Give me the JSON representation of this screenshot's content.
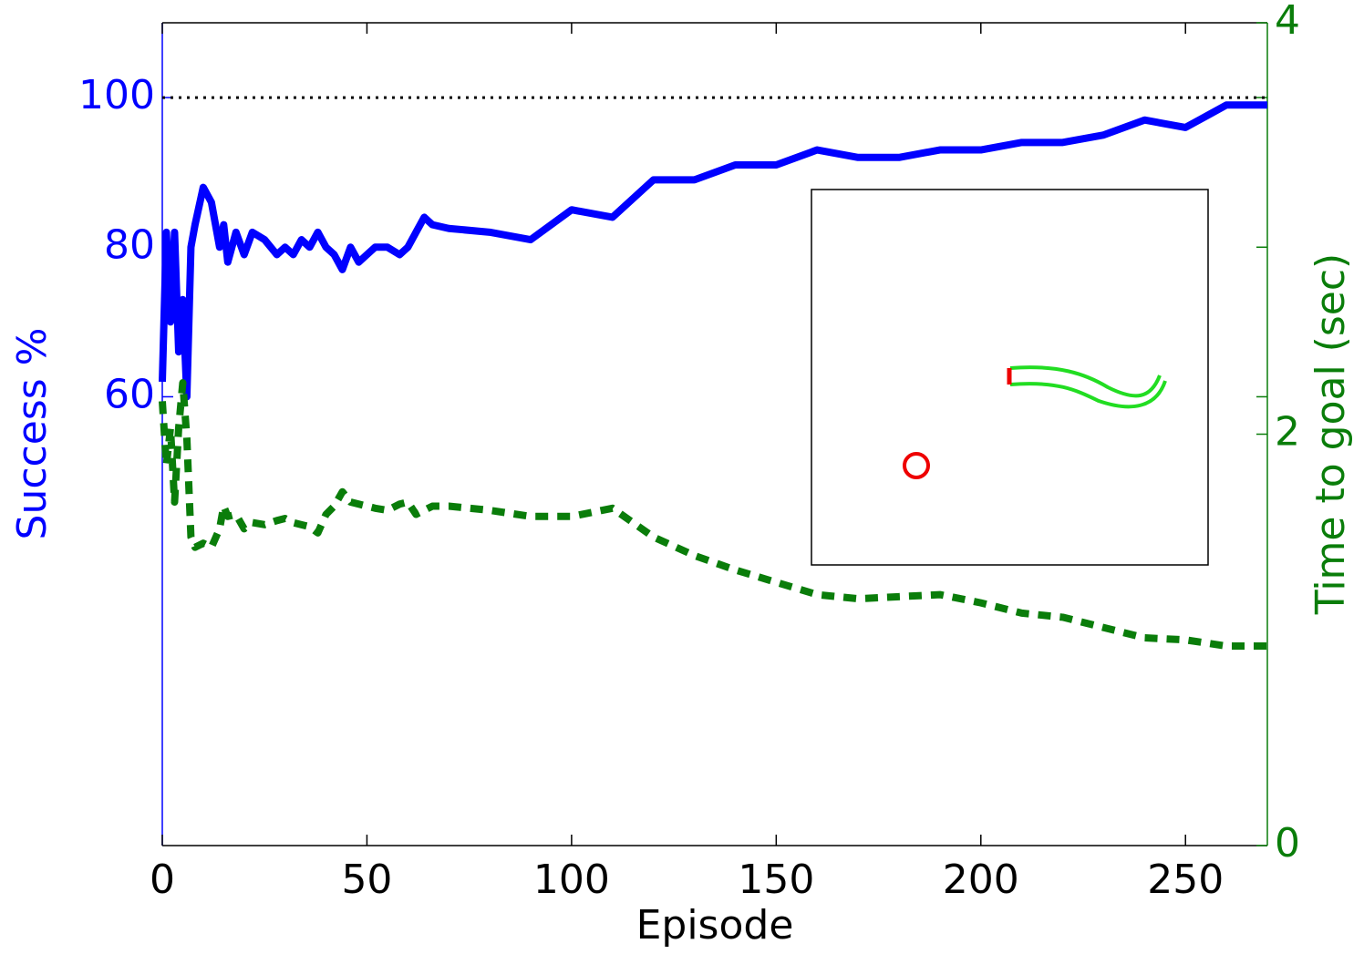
{
  "chart_data": {
    "type": "line",
    "xlabel": "Episode",
    "ylabel": "Success %",
    "y2label": "Time to goal (sec)",
    "x": [
      0,
      1,
      2,
      3,
      4,
      5,
      6,
      7,
      8,
      10,
      12,
      14,
      15,
      16,
      18,
      20,
      22,
      25,
      28,
      30,
      32,
      34,
      36,
      38,
      40,
      42,
      44,
      46,
      48,
      50,
      52,
      55,
      58,
      60,
      62,
      64,
      66,
      70,
      80,
      90,
      100,
      110,
      120,
      130,
      140,
      150,
      160,
      170,
      180,
      190,
      200,
      210,
      220,
      230,
      240,
      250,
      260,
      270
    ],
    "series": [
      {
        "color": "#0000ff",
        "axis": "y",
        "dashed": false,
        "values": [
          62,
          82,
          70,
          82,
          66,
          73,
          60,
          80,
          83,
          88,
          86,
          80,
          83,
          78,
          82,
          79,
          82,
          81,
          79,
          80,
          79,
          81,
          80,
          82,
          80,
          79,
          77,
          80,
          78,
          79,
          80,
          80,
          79,
          80,
          82,
          84,
          83,
          82.5,
          82,
          81,
          85,
          84,
          89,
          89,
          91,
          91,
          93,
          92,
          92,
          93,
          93,
          94,
          94,
          95,
          97,
          96,
          99,
          99
        ]
      },
      {
        "color": "#0a7d0a",
        "axis": "y2",
        "dashed": true,
        "values": [
          2.16,
          1.85,
          2.03,
          1.67,
          2.03,
          2.25,
          1.98,
          1.5,
          1.45,
          1.47,
          1.45,
          1.54,
          1.65,
          1.6,
          1.61,
          1.54,
          1.57,
          1.56,
          1.58,
          1.59,
          1.57,
          1.56,
          1.55,
          1.52,
          1.61,
          1.65,
          1.72,
          1.67,
          1.66,
          1.65,
          1.64,
          1.63,
          1.66,
          1.67,
          1.61,
          1.63,
          1.65,
          1.65,
          1.63,
          1.6,
          1.6,
          1.64,
          1.5,
          1.41,
          1.34,
          1.28,
          1.22,
          1.2,
          1.21,
          1.22,
          1.18,
          1.13,
          1.11,
          1.06,
          1.01,
          1,
          0.97,
          0.97
        ]
      }
    ],
    "reference_line": 100,
    "xlim": [
      0,
      270
    ],
    "xticks": [
      0,
      50,
      100,
      150,
      200,
      250
    ],
    "ylim": [
      0,
      110
    ],
    "yticks": [
      60,
      80,
      100
    ],
    "y2lim": [
      0,
      4
    ],
    "y2ticks": [
      0,
      2,
      4
    ]
  }
}
